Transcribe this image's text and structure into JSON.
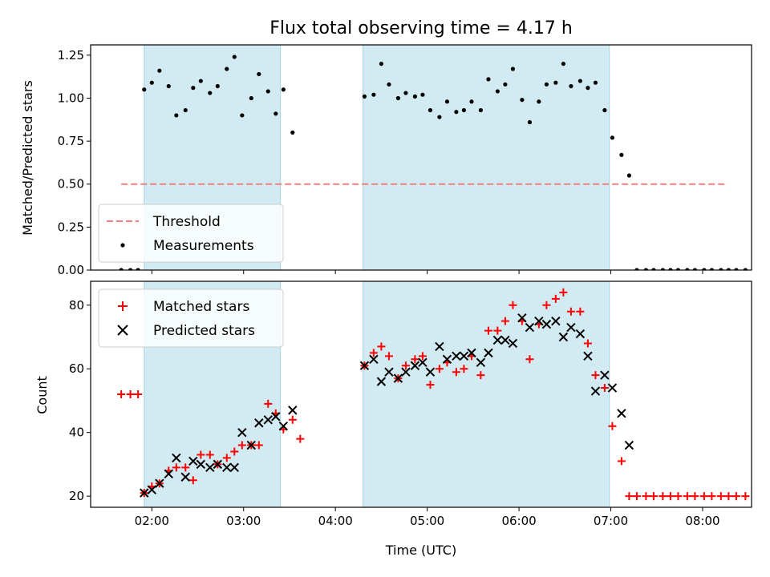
{
  "chart_data": [
    {
      "type": "scatter",
      "title": "Flux total observing time = 4.17 h",
      "xlabel": "",
      "ylabel": "Matched/Predicted stars",
      "ylim": [
        0,
        1.31
      ],
      "xlim": [
        "01:20",
        "08:32"
      ],
      "yticks": [
        "0.00",
        "0.25",
        "0.50",
        "0.75",
        "1.00",
        "1.25"
      ],
      "grid": false,
      "legend_position": "lower-left",
      "shaded_intervals": [
        [
          "01:55",
          "03:24"
        ],
        [
          "04:18",
          "06:59"
        ]
      ],
      "shaded_color": "#add8e6",
      "threshold": {
        "name": "Threshold",
        "value": 0.5,
        "x_range": [
          "01:40",
          "08:15"
        ],
        "color": "#f08080"
      },
      "series": [
        {
          "name": "Measurements",
          "color": "#000000",
          "points": [
            [
              "01:40",
              0
            ],
            [
              "01:46",
              0
            ],
            [
              "01:51",
              0
            ],
            [
              "01:55",
              1.05
            ],
            [
              "02:00",
              1.09
            ],
            [
              "02:05",
              1.16
            ],
            [
              "02:11",
              1.07
            ],
            [
              "02:16",
              0.9
            ],
            [
              "02:22",
              0.93
            ],
            [
              "02:27",
              1.06
            ],
            [
              "02:32",
              1.1
            ],
            [
              "02:38",
              1.03
            ],
            [
              "02:43",
              1.07
            ],
            [
              "02:49",
              1.17
            ],
            [
              "02:54",
              1.24
            ],
            [
              "02:59",
              0.9
            ],
            [
              "03:05",
              1.0
            ],
            [
              "03:10",
              1.14
            ],
            [
              "03:16",
              1.04
            ],
            [
              "03:21",
              0.91
            ],
            [
              "03:26",
              1.05
            ],
            [
              "03:32",
              0.8
            ],
            [
              "04:19",
              1.01
            ],
            [
              "04:25",
              1.02
            ],
            [
              "04:30",
              1.2
            ],
            [
              "04:35",
              1.08
            ],
            [
              "04:41",
              1.0
            ],
            [
              "04:46",
              1.03
            ],
            [
              "04:52",
              1.01
            ],
            [
              "04:57",
              1.02
            ],
            [
              "05:02",
              0.93
            ],
            [
              "05:08",
              0.89
            ],
            [
              "05:13",
              0.98
            ],
            [
              "05:19",
              0.92
            ],
            [
              "05:24",
              0.93
            ],
            [
              "05:29",
              0.98
            ],
            [
              "05:35",
              0.93
            ],
            [
              "05:40",
              1.11
            ],
            [
              "05:46",
              1.04
            ],
            [
              "05:51",
              1.08
            ],
            [
              "05:56",
              1.17
            ],
            [
              "06:02",
              0.99
            ],
            [
              "06:07",
              0.86
            ],
            [
              "06:13",
              0.98
            ],
            [
              "06:18",
              1.08
            ],
            [
              "06:24",
              1.09
            ],
            [
              "06:29",
              1.2
            ],
            [
              "06:34",
              1.07
            ],
            [
              "06:40",
              1.1
            ],
            [
              "06:45",
              1.06
            ],
            [
              "06:50",
              1.09
            ],
            [
              "06:56",
              0.93
            ],
            [
              "07:01",
              0.77
            ],
            [
              "07:07",
              0.67
            ],
            [
              "07:12",
              0.55
            ],
            [
              "07:17",
              0
            ],
            [
              "07:23",
              0
            ],
            [
              "07:28",
              0
            ],
            [
              "07:34",
              0
            ],
            [
              "07:39",
              0
            ],
            [
              "07:44",
              0
            ],
            [
              "07:50",
              0
            ],
            [
              "07:55",
              0
            ],
            [
              "08:01",
              0
            ],
            [
              "08:06",
              0
            ],
            [
              "08:12",
              0
            ],
            [
              "08:17",
              0
            ],
            [
              "08:22",
              0
            ],
            [
              "08:28",
              0
            ]
          ]
        }
      ]
    },
    {
      "type": "scatter",
      "title": "",
      "xlabel": "Time (UTC)",
      "ylabel": "Count",
      "ylim": [
        16.5,
        87.5
      ],
      "xlim": [
        "01:20",
        "08:32"
      ],
      "yticks": [
        "20",
        "40",
        "60",
        "80"
      ],
      "xticks": [
        "02:00",
        "03:00",
        "04:00",
        "05:00",
        "06:00",
        "07:00",
        "08:00"
      ],
      "grid": false,
      "legend_position": "upper-left",
      "shaded_intervals": [
        [
          "01:55",
          "03:24"
        ],
        [
          "04:18",
          "06:59"
        ]
      ],
      "shaded_color": "#add8e6",
      "series": [
        {
          "name": "Matched stars",
          "marker": "+",
          "color": "#ff0000",
          "points": [
            [
              "01:40",
              52
            ],
            [
              "01:46",
              52
            ],
            [
              "01:51",
              52
            ],
            [
              "01:55",
              21
            ],
            [
              "02:00",
              23
            ],
            [
              "02:05",
              24
            ],
            [
              "02:11",
              28
            ],
            [
              "02:16",
              29
            ],
            [
              "02:22",
              29
            ],
            [
              "02:27",
              25
            ],
            [
              "02:32",
              33
            ],
            [
              "02:38",
              33
            ],
            [
              "02:43",
              30
            ],
            [
              "02:49",
              32
            ],
            [
              "02:54",
              34
            ],
            [
              "02:59",
              36
            ],
            [
              "03:05",
              36
            ],
            [
              "03:10",
              36
            ],
            [
              "03:16",
              49
            ],
            [
              "03:21",
              46
            ],
            [
              "03:26",
              41
            ],
            [
              "03:32",
              44
            ],
            [
              "03:37",
              38
            ],
            [
              "04:19",
              61
            ],
            [
              "04:25",
              65
            ],
            [
              "04:30",
              67
            ],
            [
              "04:35",
              64
            ],
            [
              "04:41",
              57
            ],
            [
              "04:46",
              61
            ],
            [
              "04:52",
              63
            ],
            [
              "04:57",
              64
            ],
            [
              "05:02",
              55
            ],
            [
              "05:08",
              60
            ],
            [
              "05:13",
              62
            ],
            [
              "05:19",
              59
            ],
            [
              "05:24",
              60
            ],
            [
              "05:29",
              64
            ],
            [
              "05:35",
              58
            ],
            [
              "05:40",
              72
            ],
            [
              "05:46",
              72
            ],
            [
              "05:51",
              75
            ],
            [
              "05:56",
              80
            ],
            [
              "06:02",
              75
            ],
            [
              "06:07",
              63
            ],
            [
              "06:13",
              74
            ],
            [
              "06:18",
              80
            ],
            [
              "06:24",
              82
            ],
            [
              "06:29",
              84
            ],
            [
              "06:34",
              78
            ],
            [
              "06:40",
              78
            ],
            [
              "06:45",
              68
            ],
            [
              "06:50",
              58
            ],
            [
              "06:56",
              54
            ],
            [
              "07:01",
              42
            ],
            [
              "07:07",
              31
            ],
            [
              "07:12",
              20
            ],
            [
              "07:17",
              20
            ],
            [
              "07:23",
              20
            ],
            [
              "07:28",
              20
            ],
            [
              "07:34",
              20
            ],
            [
              "07:39",
              20
            ],
            [
              "07:44",
              20
            ],
            [
              "07:50",
              20
            ],
            [
              "07:55",
              20
            ],
            [
              "08:01",
              20
            ],
            [
              "08:06",
              20
            ],
            [
              "08:12",
              20
            ],
            [
              "08:17",
              20
            ],
            [
              "08:22",
              20
            ],
            [
              "08:28",
              20
            ]
          ]
        },
        {
          "name": "Predicted stars",
          "marker": "x",
          "color": "#000000",
          "points": [
            [
              "01:55",
              21
            ],
            [
              "02:00",
              22
            ],
            [
              "02:05",
              24
            ],
            [
              "02:11",
              27
            ],
            [
              "02:16",
              32
            ],
            [
              "02:22",
              26
            ],
            [
              "02:27",
              31
            ],
            [
              "02:32",
              30
            ],
            [
              "02:38",
              29
            ],
            [
              "02:43",
              30
            ],
            [
              "02:49",
              29
            ],
            [
              "02:54",
              29
            ],
            [
              "02:59",
              40
            ],
            [
              "03:05",
              36
            ],
            [
              "03:10",
              43
            ],
            [
              "03:16",
              44
            ],
            [
              "03:21",
              45
            ],
            [
              "03:26",
              42
            ],
            [
              "03:32",
              47
            ],
            [
              "04:19",
              61
            ],
            [
              "04:25",
              63
            ],
            [
              "04:30",
              56
            ],
            [
              "04:35",
              59
            ],
            [
              "04:41",
              57
            ],
            [
              "04:46",
              59
            ],
            [
              "04:52",
              61
            ],
            [
              "04:57",
              62
            ],
            [
              "05:02",
              59
            ],
            [
              "05:08",
              67
            ],
            [
              "05:13",
              63
            ],
            [
              "05:19",
              64
            ],
            [
              "05:24",
              64
            ],
            [
              "05:29",
              65
            ],
            [
              "05:35",
              62
            ],
            [
              "05:40",
              65
            ],
            [
              "05:46",
              69
            ],
            [
              "05:51",
              69
            ],
            [
              "05:56",
              68
            ],
            [
              "06:02",
              76
            ],
            [
              "06:07",
              73
            ],
            [
              "06:13",
              75
            ],
            [
              "06:18",
              74
            ],
            [
              "06:24",
              75
            ],
            [
              "06:29",
              70
            ],
            [
              "06:34",
              73
            ],
            [
              "06:40",
              71
            ],
            [
              "06:45",
              64
            ],
            [
              "06:50",
              53
            ],
            [
              "06:56",
              58
            ],
            [
              "07:01",
              54
            ],
            [
              "07:07",
              46
            ],
            [
              "07:12",
              36
            ]
          ]
        }
      ]
    }
  ]
}
